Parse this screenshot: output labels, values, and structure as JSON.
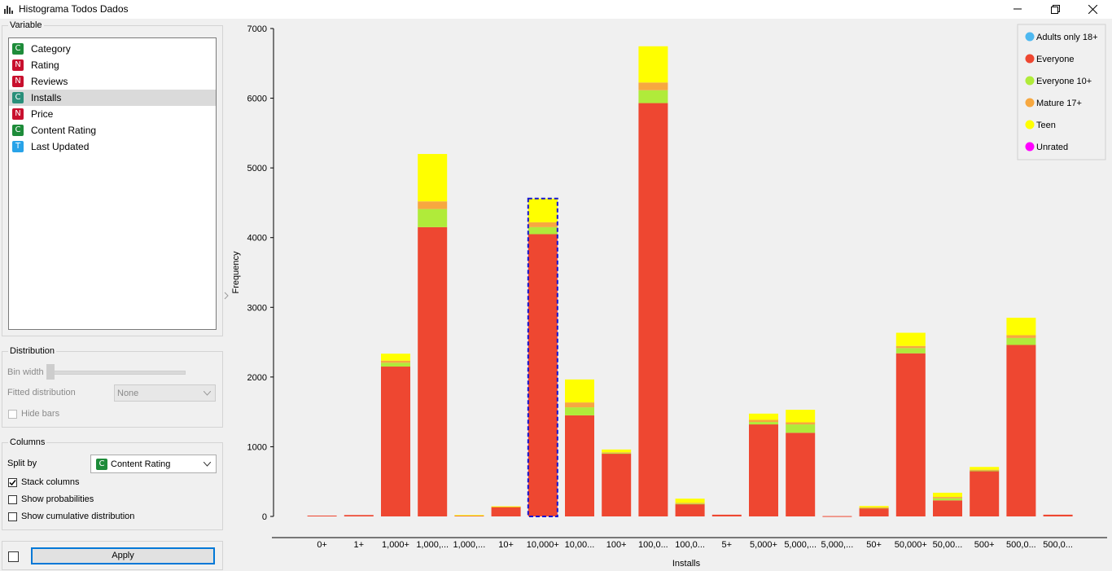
{
  "window": {
    "title": "Histograma Todos Dados"
  },
  "variable_panel": {
    "title": "Variable",
    "items": [
      {
        "type": "C",
        "name": "Category",
        "color": "#1e8c3a"
      },
      {
        "type": "N",
        "name": "Rating",
        "color": "#c8102e"
      },
      {
        "type": "N",
        "name": "Reviews",
        "color": "#c8102e"
      },
      {
        "type": "C",
        "name": "Installs",
        "color": "#2a8f7a",
        "selected": true
      },
      {
        "type": "N",
        "name": "Price",
        "color": "#c8102e"
      },
      {
        "type": "C",
        "name": "Content Rating",
        "color": "#1e8c3a"
      },
      {
        "type": "T",
        "name": "Last Updated",
        "color": "#29a3e8"
      }
    ]
  },
  "distribution": {
    "title": "Distribution",
    "bin_width_label": "Bin width",
    "fitted_label": "Fitted distribution",
    "fitted_value": "None",
    "hide_bars_label": "Hide bars"
  },
  "columns": {
    "title": "Columns",
    "split_by_label": "Split by",
    "split_by_badge": "C",
    "split_by_value": "Content Rating",
    "stack_columns_label": "Stack columns",
    "stack_columns_checked": true,
    "show_probabilities_label": "Show probabilities",
    "show_cumulative_label": "Show cumulative distribution"
  },
  "footer": {
    "apply_label": "Apply"
  },
  "chart_data": {
    "type": "bar",
    "stacked": true,
    "xlabel": "Installs",
    "ylabel": "Frequency",
    "ylim": [
      0,
      7000
    ],
    "yticks": [
      0,
      1000,
      2000,
      3000,
      4000,
      5000,
      6000,
      7000
    ],
    "legend_position": "top-right",
    "categories": [
      "0+",
      "1+",
      "1,000+",
      "1,000,...",
      "1,000,...",
      "10+",
      "10,000+",
      "10,00...",
      "100+",
      "100,0...",
      "100,0...",
      "5+",
      "5,000+",
      "5,000,...",
      "5,000,...",
      "50+",
      "50,000+",
      "50,00...",
      "500+",
      "500,0...",
      "500,0..."
    ],
    "highlighted_index": 6,
    "series": [
      {
        "name": "Adults only 18+",
        "color": "#4db8f0",
        "values": [
          0,
          0,
          0,
          0,
          0,
          0,
          0,
          0,
          0,
          0,
          0,
          0,
          0,
          0,
          0,
          0,
          0,
          0,
          0,
          0,
          0
        ]
      },
      {
        "name": "Everyone",
        "color": "#ee4731",
        "values": [
          12,
          20,
          2150,
          4150,
          15,
          140,
          4050,
          1450,
          900,
          5930,
          180,
          25,
          1320,
          1200,
          5,
          120,
          2340,
          230,
          650,
          2460,
          25
        ]
      },
      {
        "name": "Everyone 10+",
        "color": "#b0eb3a",
        "values": [
          0,
          0,
          55,
          260,
          0,
          0,
          100,
          115,
          10,
          185,
          5,
          0,
          35,
          120,
          0,
          5,
          75,
          30,
          10,
          100,
          0
        ]
      },
      {
        "name": "Mature 17+",
        "color": "#f7a840",
        "values": [
          0,
          0,
          30,
          110,
          0,
          0,
          70,
          70,
          10,
          110,
          10,
          0,
          30,
          30,
          0,
          5,
          30,
          20,
          10,
          40,
          0
        ]
      },
      {
        "name": "Teen",
        "color": "#ffff00",
        "values": [
          0,
          0,
          100,
          680,
          5,
          5,
          340,
          330,
          40,
          520,
          60,
          0,
          90,
          180,
          0,
          20,
          190,
          60,
          40,
          250,
          0
        ]
      },
      {
        "name": "Unrated",
        "color": "#ff00ff",
        "values": [
          0,
          0,
          0,
          0,
          0,
          0,
          0,
          0,
          0,
          0,
          0,
          0,
          0,
          0,
          0,
          0,
          0,
          0,
          0,
          0,
          0
        ]
      }
    ]
  }
}
